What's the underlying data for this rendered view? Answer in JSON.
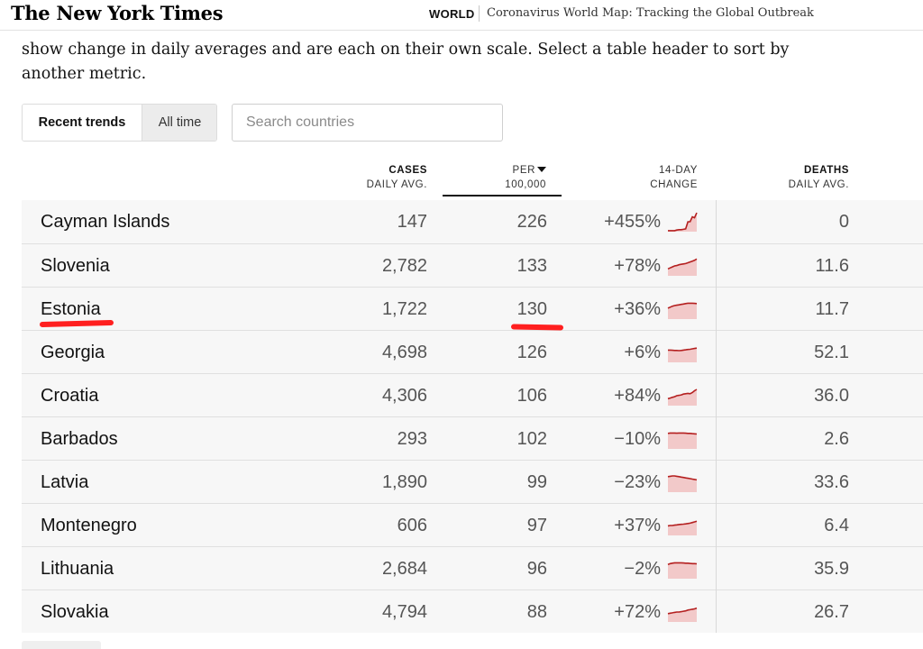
{
  "header": {
    "logo": "The New York Times",
    "section": "WORLD",
    "headline": "Coronavirus World Map: Tracking the Global Outbreak"
  },
  "intro": "show change in daily averages and are each on their own scale. Select a table header to sort by another metric.",
  "controls": {
    "toggle_active": "Recent trends",
    "toggle_inactive": "All time",
    "search_placeholder": "Search countries",
    "search_value": ""
  },
  "columns": {
    "cases_line1": "CASES",
    "cases_line2": "DAILY AVG.",
    "per_line1": "PER",
    "per_line2": "100,000",
    "change_line1": "14-DAY",
    "change_line2": "CHANGE",
    "deaths_line1": "DEATHS",
    "deaths_line2": "DAILY AVG."
  },
  "rows": [
    {
      "country": "Cayman Islands",
      "cases": "147",
      "per100k": "226",
      "change": "+455%",
      "deaths": "0",
      "trend": [
        0.05,
        0.05,
        0.05,
        0.05,
        0.08,
        0.1,
        0.1,
        0.12,
        0.14,
        0.5,
        0.5,
        0.75,
        0.7,
        0.95
      ]
    },
    {
      "country": "Slovenia",
      "cases": "2,782",
      "per100k": "133",
      "change": "+78%",
      "deaths": "11.6",
      "trend": [
        0.35,
        0.4,
        0.45,
        0.5,
        0.52,
        0.56,
        0.58,
        0.6,
        0.62,
        0.66,
        0.7,
        0.74,
        0.78,
        0.85
      ]
    },
    {
      "country": "Estonia",
      "cases": "1,722",
      "per100k": "130",
      "change": "+36%",
      "deaths": "11.7",
      "trend": [
        0.55,
        0.6,
        0.65,
        0.68,
        0.7,
        0.72,
        0.74,
        0.76,
        0.78,
        0.8,
        0.8,
        0.8,
        0.79,
        0.78
      ]
    },
    {
      "country": "Georgia",
      "cases": "4,698",
      "per100k": "126",
      "change": "+6%",
      "deaths": "52.1",
      "trend": [
        0.62,
        0.62,
        0.61,
        0.6,
        0.6,
        0.59,
        0.6,
        0.62,
        0.63,
        0.65,
        0.66,
        0.68,
        0.7,
        0.72
      ]
    },
    {
      "country": "Croatia",
      "cases": "4,306",
      "per100k": "106",
      "change": "+84%",
      "deaths": "36.0",
      "trend": [
        0.35,
        0.38,
        0.42,
        0.45,
        0.5,
        0.52,
        0.54,
        0.58,
        0.6,
        0.62,
        0.6,
        0.66,
        0.75,
        0.82
      ]
    },
    {
      "country": "Barbados",
      "cases": "293",
      "per100k": "102",
      "change": "−10%",
      "deaths": "2.6",
      "trend": [
        0.78,
        0.8,
        0.8,
        0.8,
        0.79,
        0.8,
        0.8,
        0.8,
        0.79,
        0.78,
        0.78,
        0.77,
        0.76,
        0.75
      ]
    },
    {
      "country": "Latvia",
      "cases": "1,890",
      "per100k": "99",
      "change": "−23%",
      "deaths": "33.6",
      "trend": [
        0.78,
        0.8,
        0.82,
        0.82,
        0.8,
        0.78,
        0.76,
        0.74,
        0.72,
        0.7,
        0.68,
        0.66,
        0.64,
        0.62
      ]
    },
    {
      "country": "Montenegro",
      "cases": "606",
      "per100k": "97",
      "change": "+37%",
      "deaths": "6.4",
      "trend": [
        0.48,
        0.5,
        0.5,
        0.52,
        0.53,
        0.55,
        0.56,
        0.57,
        0.58,
        0.6,
        0.62,
        0.65,
        0.68,
        0.72
      ]
    },
    {
      "country": "Lithuania",
      "cases": "2,684",
      "per100k": "96",
      "change": "−2%",
      "deaths": "35.9",
      "trend": [
        0.72,
        0.76,
        0.78,
        0.8,
        0.8,
        0.8,
        0.8,
        0.79,
        0.78,
        0.78,
        0.77,
        0.76,
        0.76,
        0.75
      ]
    },
    {
      "country": "Slovakia",
      "cases": "4,794",
      "per100k": "88",
      "change": "+72%",
      "deaths": "26.7",
      "trend": [
        0.42,
        0.44,
        0.46,
        0.48,
        0.5,
        0.5,
        0.52,
        0.54,
        0.56,
        0.6,
        0.62,
        0.64,
        0.66,
        0.7
      ]
    }
  ],
  "colors": {
    "spark_line": "#b41f1f",
    "spark_fill": "#f2c9c9",
    "annotation": "#ff1f1f"
  },
  "icons": {
    "sort": "sort-descending-icon"
  }
}
